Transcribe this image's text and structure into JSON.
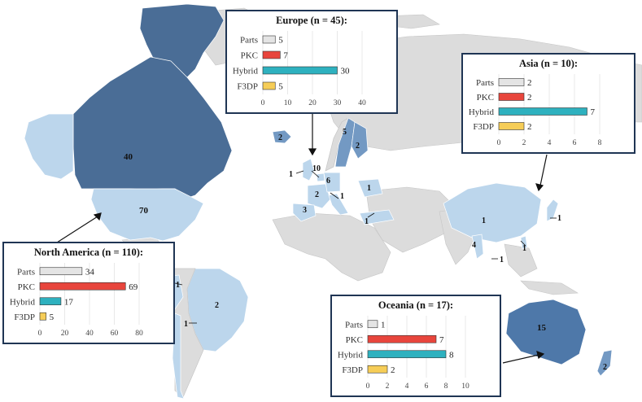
{
  "colors": {
    "ocean": "#ffffff",
    "land_base": "#dcdcdc",
    "light": "#bcd6ec",
    "medium": "#7399c3",
    "dark": "#4a6d96",
    "bar_parts": "#e4e4e4",
    "bar_pkc": "#e8453c",
    "bar_hybrid": "#2eb1bf",
    "bar_f3dp": "#f6cd57",
    "box_border": "#1f3554"
  },
  "map_counts": {
    "canada": "40",
    "usa": "70",
    "alaska": "",
    "greenland": "",
    "iceland": "2",
    "brazil": "2",
    "peru": "1",
    "chile": "1",
    "sweden": "5",
    "finland": "2",
    "uk": "1",
    "netherlands": "10",
    "germany": "6",
    "france": "2",
    "spain": "3",
    "italy_group": "1",
    "poland": "1",
    "turkey": "1",
    "china": "1",
    "japan": "1",
    "myanmar": "4",
    "philippines": "1",
    "vietnam": "1",
    "australia": "15",
    "new_zealand": "2"
  },
  "chart_data": [
    {
      "type": "bar",
      "orientation": "horizontal",
      "title": "Europe (n = 45):",
      "categories": [
        "Parts",
        "PKC",
        "Hybrid",
        "F3DP"
      ],
      "values": [
        5,
        7,
        30,
        5
      ],
      "value_labels": [
        "5",
        "7",
        "30",
        "5"
      ],
      "xlim": [
        0,
        40
      ],
      "xticks": [
        "0",
        "10",
        "20",
        "30",
        "40"
      ],
      "grid": true
    },
    {
      "type": "bar",
      "orientation": "horizontal",
      "title": "Asia (n = 10):",
      "categories": [
        "Parts",
        "PKC",
        "Hybrid",
        "F3DP"
      ],
      "values": [
        2,
        2,
        7,
        2
      ],
      "value_labels": [
        "2",
        "2",
        "7",
        "2"
      ],
      "xlim": [
        0,
        8
      ],
      "xticks": [
        "0",
        "2",
        "4",
        "6",
        "8"
      ],
      "grid": true
    },
    {
      "type": "bar",
      "orientation": "horizontal",
      "title": "North America (n = 110):",
      "categories": [
        "Parts",
        "PKC",
        "Hybrid",
        "F3DP"
      ],
      "values": [
        34,
        69,
        17,
        5
      ],
      "value_labels": [
        "34",
        "69",
        "17",
        "5"
      ],
      "xlim": [
        0,
        80
      ],
      "xticks": [
        "0",
        "20",
        "40",
        "60",
        "80"
      ],
      "grid": true
    },
    {
      "type": "bar",
      "orientation": "horizontal",
      "title": "Oceania (n = 17):",
      "categories": [
        "Parts",
        "PKC",
        "Hybrid",
        "F3DP"
      ],
      "values": [
        1,
        7,
        8,
        2
      ],
      "value_labels": [
        "1",
        "7",
        "8",
        "2"
      ],
      "xlim": [
        0,
        10
      ],
      "xticks": [
        "0",
        "2",
        "4",
        "6",
        "8",
        "10"
      ],
      "grid": true
    }
  ]
}
